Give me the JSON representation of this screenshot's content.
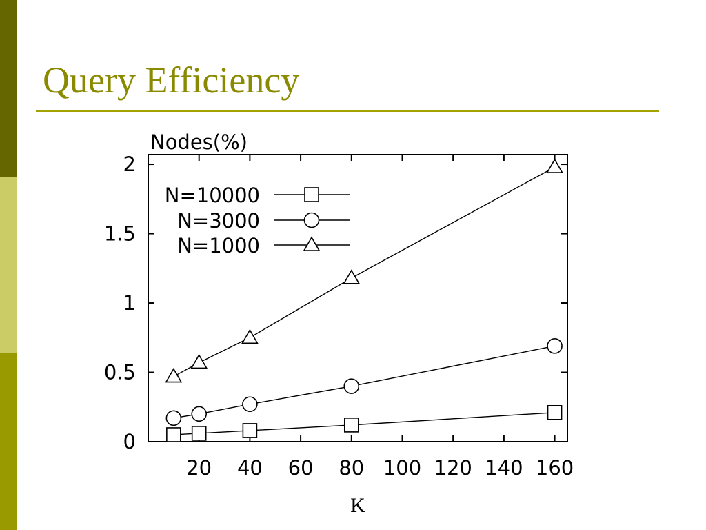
{
  "slide": {
    "title": "Query Efficiency",
    "colors": {
      "title": "#8a8a00",
      "rule": "#a2a200",
      "sidebar_top": "#666600",
      "sidebar_mid": "#cccc66",
      "sidebar_bottom": "#999900"
    }
  },
  "chart_data": {
    "type": "line",
    "title": "",
    "xlabel": "K",
    "ylabel": "Nodes(%)",
    "xlim": [
      0,
      165
    ],
    "ylim": [
      0,
      2.07
    ],
    "x_ticks": [
      20,
      40,
      60,
      80,
      100,
      120,
      140,
      160
    ],
    "y_ticks": [
      0,
      0.5,
      1,
      1.5,
      2
    ],
    "y_tick_labels": [
      "0",
      "0.5",
      "1",
      "1.5",
      "2"
    ],
    "grid": false,
    "legend": "top-left",
    "series": [
      {
        "name": "N=10000",
        "marker": "square",
        "x": [
          10,
          20,
          40,
          80,
          160
        ],
        "values": [
          0.05,
          0.06,
          0.08,
          0.12,
          0.21
        ]
      },
      {
        "name": "N=3000",
        "marker": "circle",
        "x": [
          10,
          20,
          40,
          80,
          160
        ],
        "values": [
          0.17,
          0.2,
          0.27,
          0.4,
          0.69
        ]
      },
      {
        "name": "N=1000",
        "marker": "triangle",
        "x": [
          10,
          20,
          40,
          80,
          160
        ],
        "values": [
          0.47,
          0.57,
          0.75,
          1.18,
          1.98
        ]
      }
    ]
  }
}
